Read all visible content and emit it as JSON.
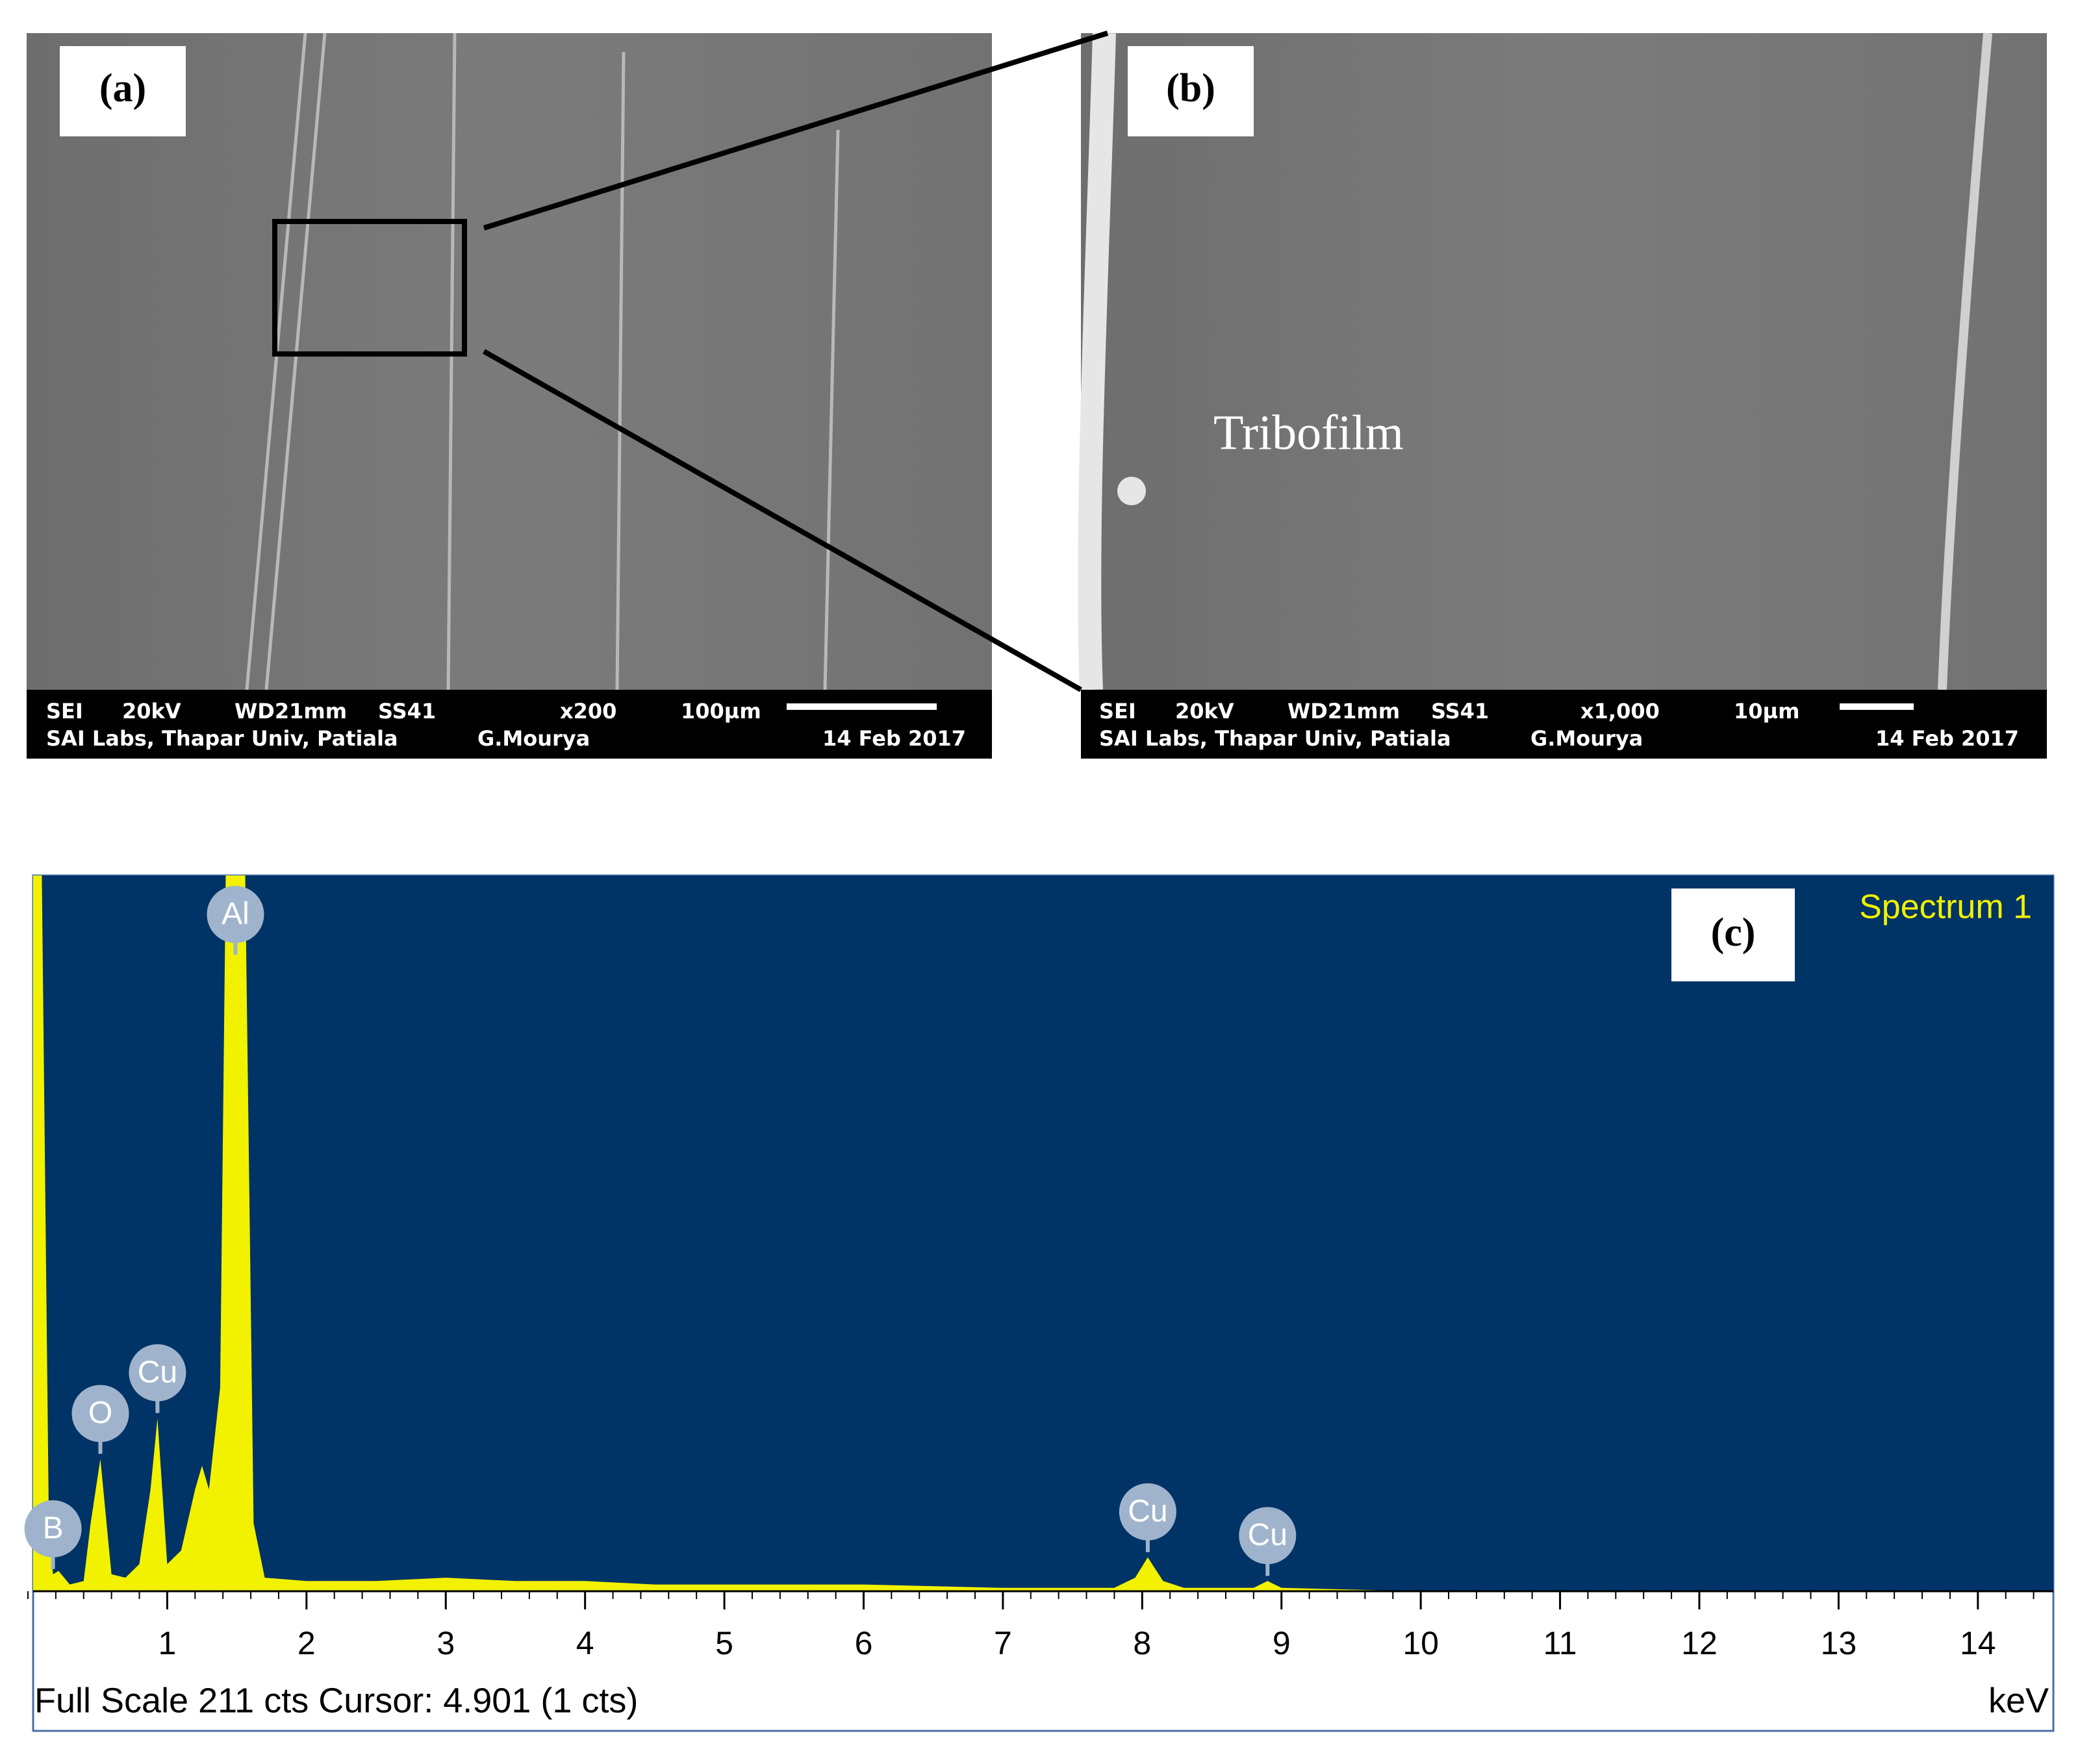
{
  "panels": [
    {
      "label": "(a)",
      "info_row1": [
        "SEI",
        "20kV",
        "WD21mm",
        "SS41",
        "x200",
        "100µm"
      ],
      "info_row2": [
        "SAI Labs, Thapar Univ, Patiala",
        "G.Mourya",
        "14 Feb 2017"
      ]
    },
    {
      "label": "(b)",
      "annotation": "Tribofilm",
      "info_row1": [
        "SEI",
        "20kV",
        "WD21mm",
        "SS41",
        "x1,000",
        "10µm"
      ],
      "info_row2": [
        "SAI Labs, Thapar Univ, Patiala",
        "G.Mourya",
        "14 Feb 2017"
      ]
    }
  ],
  "chart_data": {
    "type": "area",
    "title": "Spectrum 1",
    "panel_label": "(c)",
    "footer": "Full Scale 211 cts Cursor: 4.901  (1 cts)",
    "x_label": "keV",
    "color": "#f2f200",
    "background": "#003366",
    "x": [
      0.03,
      0.1,
      0.15,
      0.18,
      0.22,
      0.3,
      0.4,
      0.45,
      0.52,
      0.6,
      0.7,
      0.8,
      0.88,
      0.93,
      1.0,
      1.1,
      1.2,
      1.25,
      1.3,
      1.38,
      1.42,
      1.49,
      1.56,
      1.62,
      1.7,
      2,
      2.5,
      3,
      3.5,
      4,
      4.5,
      5,
      6,
      7,
      7.8,
      7.95,
      8.04,
      8.15,
      8.3,
      8.8,
      8.9,
      9.0,
      10,
      14.5
    ],
    "values": [
      211,
      211,
      20,
      5,
      6,
      2,
      3,
      20,
      39,
      5,
      4,
      8,
      30,
      51,
      8,
      12,
      30,
      37,
      30,
      60,
      211,
      211,
      211,
      20,
      4,
      3,
      3,
      4,
      3,
      3,
      2,
      2,
      2,
      1,
      1,
      4,
      10,
      3,
      1,
      1,
      3,
      1,
      0,
      0
    ],
    "peak_labels": [
      {
        "text": "B",
        "x": 0.18
      },
      {
        "text": "Al",
        "x": 1.49
      },
      {
        "text": "O",
        "x": 0.52
      },
      {
        "text": "Cu",
        "x": 0.93
      },
      {
        "text": "Cu",
        "x": 8.04
      },
      {
        "text": "Cu",
        "x": 8.9
      }
    ],
    "xlim": [
      0,
      14.5
    ],
    "xticks": [
      1,
      2,
      3,
      4,
      5,
      6,
      7,
      8,
      9,
      10,
      11,
      12,
      13,
      14
    ],
    "ylim": [
      0,
      211
    ]
  }
}
